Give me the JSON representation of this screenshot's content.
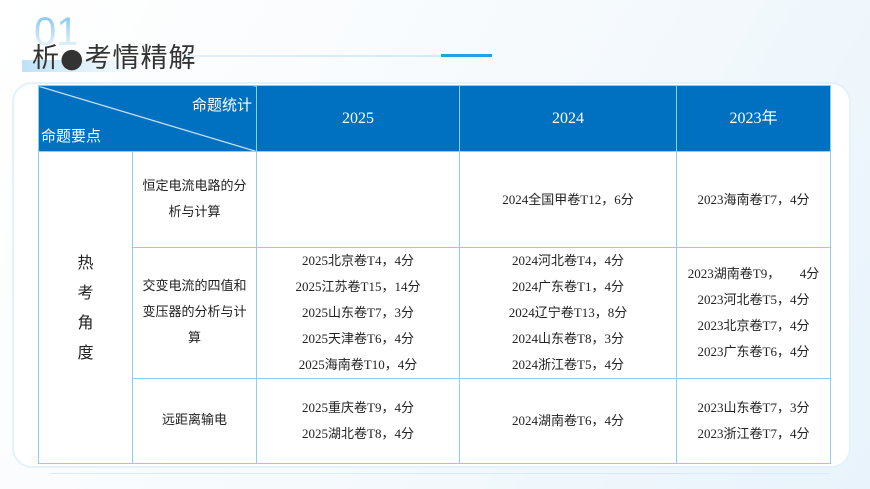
{
  "header": {
    "number": "01",
    "title": "析●考情精解"
  },
  "table": {
    "corner_top": "命题统计",
    "corner_bottom": "命题要点",
    "columns": [
      "2025",
      "2024",
      "2023年"
    ],
    "category": "热考角度",
    "rows": [
      {
        "point": "恒定电流电路的分析与计算",
        "c2025": [],
        "c2024": [
          "2024全国甲卷T12，6分"
        ],
        "c2023": [
          "2023海南卷T7，4分"
        ]
      },
      {
        "point": "交变电流的四值和变压器的分析与计算",
        "c2025": [
          "2025北京卷T4，4分",
          "2025江苏卷T15，14分",
          "2025山东卷T7，3分",
          "2025天津卷T6，4分",
          "2025海南卷T10，4分"
        ],
        "c2024": [
          "2024河北卷T4，4分",
          "2024广东卷T1，4分",
          "2024辽宁卷T13，8分",
          "2024山东卷T8，3分",
          "2024浙江卷T5，4分"
        ],
        "c2023": [
          "2023湖南卷T9，　　4分",
          "2023河北卷T5，4分",
          "2023北京卷T7，4分",
          "2023广东卷T6，4分"
        ]
      },
      {
        "point": "远距离输电",
        "c2025": [
          "2025重庆卷T9，4分",
          "2025湖北卷T8，4分"
        ],
        "c2024": [
          "2024湖南卷T6，4分"
        ],
        "c2023": [
          "2023山东卷T7，3分",
          "2023浙江卷T7，4分"
        ]
      }
    ]
  },
  "colors": {
    "header_bg": "#0070c0",
    "border": "#8dcdf0",
    "accent": "#27a0df"
  }
}
